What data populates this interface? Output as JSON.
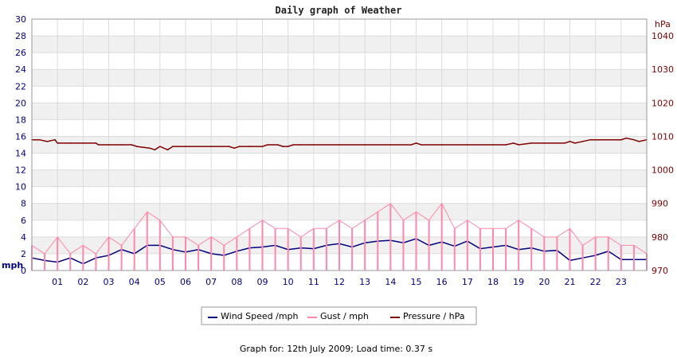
{
  "chart_data": {
    "type": "line",
    "title": "Daily graph of Weather",
    "footer": "Graph for: 12th July 2009; Load time: 0.37 s",
    "left_axis": {
      "unit": "mph",
      "range": [
        0,
        30
      ],
      "ticks": [
        "0",
        "2",
        "4",
        "6",
        "8",
        "10",
        "12",
        "14",
        "16",
        "18",
        "20",
        "22",
        "24",
        "26",
        "28",
        "30"
      ],
      "color": "#000080"
    },
    "right_axis": {
      "unit": "hPa",
      "range": [
        970,
        1045
      ],
      "ticks": [
        "970",
        "980",
        "990",
        "1000",
        "1010",
        "1020",
        "1030",
        "1040"
      ],
      "color": "#800000"
    },
    "x_axis": {
      "range_hours": [
        0,
        24
      ],
      "ticks": [
        "01",
        "02",
        "03",
        "04",
        "05",
        "06",
        "07",
        "08",
        "09",
        "10",
        "11",
        "12",
        "13",
        "14",
        "15",
        "16",
        "17",
        "18",
        "19",
        "20",
        "21",
        "22",
        "23"
      ]
    },
    "grid": true,
    "legend_position": "bottom-center",
    "series": [
      {
        "name": "Wind Speed /mph",
        "color": "#000080",
        "axis": "left",
        "x": [
          0,
          0.5,
          1,
          1.5,
          2,
          2.5,
          3,
          3.5,
          4,
          4.5,
          5,
          5.5,
          6,
          6.5,
          7,
          7.5,
          8,
          8.5,
          9,
          9.5,
          10,
          10.5,
          11,
          11.5,
          12,
          12.5,
          13,
          13.5,
          14,
          14.5,
          15,
          15.5,
          16,
          16.5,
          17,
          17.5,
          18,
          18.5,
          19,
          19.5,
          20,
          20.5,
          21,
          21.5,
          22,
          22.5,
          23,
          23.5,
          24
        ],
        "values": [
          1.5,
          1.2,
          1.0,
          1.5,
          0.8,
          1.5,
          1.8,
          2.5,
          2.0,
          3.0,
          3.0,
          2.5,
          2.2,
          2.5,
          2.0,
          1.8,
          2.3,
          2.7,
          2.8,
          3.0,
          2.5,
          2.7,
          2.6,
          3.0,
          3.2,
          2.8,
          3.3,
          3.5,
          3.6,
          3.3,
          3.8,
          3.0,
          3.4,
          2.9,
          3.5,
          2.6,
          2.8,
          3.0,
          2.5,
          2.7,
          2.3,
          2.4,
          1.2,
          1.5,
          1.8,
          2.3,
          1.3,
          1.3,
          1.3
        ]
      },
      {
        "name": "Gust / mph",
        "color": "#ff88aa",
        "axis": "left",
        "x": [
          0,
          0.5,
          1,
          1.5,
          2,
          2.5,
          3,
          3.5,
          4,
          4.5,
          5,
          5.5,
          6,
          6.5,
          7,
          7.5,
          8,
          8.5,
          9,
          9.5,
          10,
          10.5,
          11,
          11.5,
          12,
          12.5,
          13,
          13.5,
          14,
          14.5,
          15,
          15.5,
          16,
          16.5,
          17,
          17.5,
          18,
          18.5,
          19,
          19.5,
          20,
          20.5,
          21,
          21.5,
          22,
          22.5,
          23,
          23.5,
          24
        ],
        "values": [
          3,
          2,
          4,
          2,
          3,
          2,
          4,
          3,
          5,
          7,
          6,
          4,
          4,
          3,
          4,
          3,
          4,
          5,
          6,
          5,
          5,
          4,
          5,
          5,
          6,
          5,
          6,
          7,
          8,
          6,
          7,
          6,
          8,
          5,
          6,
          5,
          5,
          5,
          6,
          5,
          4,
          4,
          5,
          3,
          4,
          4,
          3,
          3,
          2
        ]
      },
      {
        "name": "Pressure / hPa",
        "color": "#800000",
        "axis": "right",
        "x": [
          0,
          0.3,
          0.6,
          0.9,
          1.0,
          1.5,
          2.0,
          2.5,
          2.6,
          3.0,
          3.5,
          3.9,
          4.1,
          4.6,
          4.8,
          5.0,
          5.3,
          5.5,
          6.0,
          7.0,
          7.7,
          7.9,
          8.1,
          8.5,
          9.0,
          9.2,
          9.6,
          9.8,
          10.0,
          10.2,
          10.5,
          11.0,
          12.0,
          13.0,
          14.0,
          14.8,
          15.0,
          15.2,
          16.0,
          17.0,
          18.0,
          18.5,
          18.8,
          19.0,
          19.5,
          20.0,
          20.5,
          20.8,
          21.0,
          21.2,
          21.5,
          21.8,
          22.0,
          22.5,
          23.0,
          23.2,
          23.5,
          23.7,
          24.0
        ],
        "values": [
          1009,
          1009,
          1008.5,
          1009,
          1008,
          1008,
          1008,
          1008,
          1007.5,
          1007.5,
          1007.5,
          1007.5,
          1007,
          1006.5,
          1006,
          1007,
          1006,
          1007,
          1007,
          1007,
          1007,
          1006.5,
          1007,
          1007,
          1007,
          1007.5,
          1007.5,
          1007,
          1007,
          1007.5,
          1007.5,
          1007.5,
          1007.5,
          1007.5,
          1007.5,
          1007.5,
          1008,
          1007.5,
          1007.5,
          1007.5,
          1007.5,
          1007.5,
          1008,
          1007.5,
          1008,
          1008,
          1008,
          1008,
          1008.5,
          1008,
          1008.5,
          1009,
          1009,
          1009,
          1009,
          1009.5,
          1009,
          1008.5,
          1009
        ]
      }
    ]
  }
}
